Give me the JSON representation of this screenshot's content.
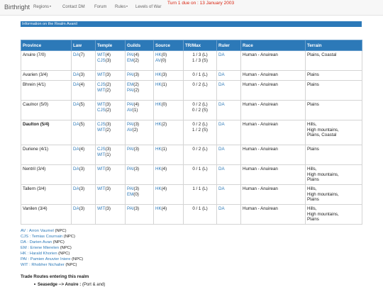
{
  "navbar": {
    "brand": "Birthright",
    "items": [
      {
        "label": "Regions",
        "dropdown": true
      },
      {
        "label": "Contact DM",
        "dropdown": false
      },
      {
        "label": "Forum",
        "dropdown": false
      },
      {
        "label": "Rules",
        "dropdown": true
      },
      {
        "label": "Levels of War",
        "dropdown": false
      }
    ],
    "turn_notice": "Turn 1 due on : 13 January 2003"
  },
  "realm_title": "Information on the Realm Avanil",
  "table": {
    "headers": [
      "Province",
      "Law",
      "Temple",
      "Guilds",
      "Source",
      "TR/Max",
      "Ruler",
      "Race",
      "Terrain"
    ],
    "rows": [
      {
        "province": "Anuire (7/0)",
        "bold": false,
        "law": [
          [
            "DA",
            "(7)"
          ]
        ],
        "temple": [
          [
            "WIT",
            "(4)"
          ],
          [
            "CJS",
            "(3)"
          ]
        ],
        "guilds": [
          [
            "PAI",
            "(4)"
          ],
          [
            "EM",
            "(2)"
          ]
        ],
        "source": [
          [
            "HK",
            "(0)"
          ],
          [
            "AV",
            "(0)"
          ]
        ],
        "tr": [
          "1 / 3 (L)",
          "1 / 3 (S)"
        ],
        "ruler": "DA",
        "race": "Human - Anuirean",
        "terrain": [
          "Plains, Coastal"
        ]
      },
      {
        "province": "Avarien (3/4)",
        "bold": false,
        "law": [
          [
            "DA",
            "(3)"
          ]
        ],
        "temple": [
          [
            "WIT",
            "(3)"
          ]
        ],
        "guilds": [
          [
            "PAI",
            "(3)"
          ]
        ],
        "source": [
          [
            "HK",
            "(3)"
          ]
        ],
        "tr": [
          "0 / 1 (L)"
        ],
        "ruler": "DA",
        "race": "Human - Anuirean",
        "terrain": [
          "Plains"
        ]
      },
      {
        "province": "Bhrein (4/1)",
        "bold": false,
        "law": [
          [
            "DA",
            "(4)"
          ]
        ],
        "temple": [
          [
            "CJS",
            "(2)"
          ],
          [
            "WIT",
            "(2)"
          ]
        ],
        "guilds": [
          [
            "EM",
            "(2)"
          ],
          [
            "PAI",
            "(2)"
          ]
        ],
        "source": [
          [
            "HK",
            "(1)"
          ]
        ],
        "tr": [
          "0 / 2 (L)"
        ],
        "ruler": "DA",
        "race": "Human - Anuirean",
        "terrain": [
          "Plains"
        ]
      },
      {
        "province": "Caulnor (5/0)",
        "bold": false,
        "law": [
          [
            "DA",
            "(5)"
          ]
        ],
        "temple": [
          [
            "WIT",
            "(3)"
          ],
          [
            "CJS",
            "(2)"
          ]
        ],
        "guilds": [
          [
            "PAI",
            "(4)"
          ],
          [
            "AV",
            "(1)"
          ]
        ],
        "source": [
          [
            "HK",
            "(0)"
          ]
        ],
        "tr": [
          "0 / 2 (L)",
          "0 / 2 (S)"
        ],
        "ruler": "DA",
        "race": "Human - Anuirean",
        "terrain": [
          "Plains"
        ]
      },
      {
        "province": "Daulton (5/4)",
        "bold": true,
        "law": [
          [
            "DA",
            "(5)"
          ]
        ],
        "temple": [
          [
            "CJS",
            "(3)"
          ],
          [
            "WIT",
            "(2)"
          ]
        ],
        "guilds": [
          [
            "PAI",
            "(3)"
          ],
          [
            "AV",
            "(2)"
          ]
        ],
        "source": [
          [
            "HK",
            "(2)"
          ]
        ],
        "tr": [
          "0 / 2 (L)",
          "1 / 2 (S)"
        ],
        "ruler": "DA",
        "race": "Human - Anuirean",
        "terrain": [
          "Hills,",
          "High mountains,",
          "Plains, Coastal"
        ]
      },
      {
        "province": "Duriene (4/1)",
        "bold": false,
        "law": [
          [
            "DA",
            "(4)"
          ]
        ],
        "temple": [
          [
            "CJS",
            "(3)"
          ],
          [
            "WIT",
            "(1)"
          ]
        ],
        "guilds": [
          [
            "PAI",
            "(3)"
          ]
        ],
        "source": [
          [
            "HK",
            "(1)"
          ]
        ],
        "tr": [
          "0 / 2 (L)"
        ],
        "ruler": "DA",
        "race": "Human - Anuirean",
        "terrain": [
          "Plains"
        ]
      },
      {
        "province": "Nentril (3/4)",
        "bold": false,
        "law": [
          [
            "DA",
            "(3)"
          ]
        ],
        "temple": [
          [
            "WIT",
            "(3)"
          ]
        ],
        "guilds": [
          [
            "PAI",
            "(3)"
          ]
        ],
        "source": [
          [
            "HK",
            "(4)"
          ]
        ],
        "tr": [
          "0 / 1 (L)"
        ],
        "ruler": "DA",
        "race": "Human - Anuirean",
        "terrain": [
          "Hills,",
          "High mountains,",
          "Plains"
        ]
      },
      {
        "province": "Tallern (3/4)",
        "bold": false,
        "law": [
          [
            "DA",
            "(3)"
          ]
        ],
        "temple": [
          [
            "WIT",
            "(3)"
          ]
        ],
        "guilds": [
          [
            "PAI",
            "(3)"
          ],
          [
            "EM",
            "(0)"
          ]
        ],
        "source": [
          [
            "HK",
            "(4)"
          ]
        ],
        "tr": [
          "1 / 1 (L)"
        ],
        "ruler": "DA",
        "race": "Human - Anuirean",
        "terrain": [
          "Hills,",
          "High mountains,",
          "Plains"
        ]
      },
      {
        "province": "Vanilen (3/4)",
        "bold": false,
        "law": [
          [
            "DA",
            "(3)"
          ]
        ],
        "temple": [
          [
            "WIT",
            "(3)"
          ]
        ],
        "guilds": [
          [
            "PAI",
            "(3)"
          ]
        ],
        "source": [
          [
            "HK",
            "(4)"
          ]
        ],
        "tr": [
          "0 / 1 (L)"
        ],
        "ruler": "DA",
        "race": "Human - Anuirean",
        "terrain": [
          "Hills,",
          "High mountains,",
          "Plains"
        ]
      }
    ]
  },
  "legend": [
    {
      "link": "AV : Arron Vaumel",
      "suffix": " (NPC)"
    },
    {
      "link": "CJS : Temias Cournain",
      "suffix": " (NPC)"
    },
    {
      "link": "DA : Darien Avan",
      "suffix": " (NPC)"
    },
    {
      "link": "EM : Eriene Mierelen",
      "suffix": " (NPC)"
    },
    {
      "link": "HK : Harald Khorien",
      "suffix": " (NPC)"
    },
    {
      "link": "PAI : Pamien Anuvier Iniere",
      "suffix": " (NPC)"
    },
    {
      "link": "WIT : Rhobher Nichalier",
      "suffix": " (NPC)"
    }
  ],
  "trade": {
    "heading": "Trade Routes entering this realm",
    "item_bold": "Seasedge --> Anuire :",
    "item_rest": " (Port & and)"
  },
  "colors": {
    "accent": "#2c79b8",
    "turn_red": "#d9230f"
  }
}
